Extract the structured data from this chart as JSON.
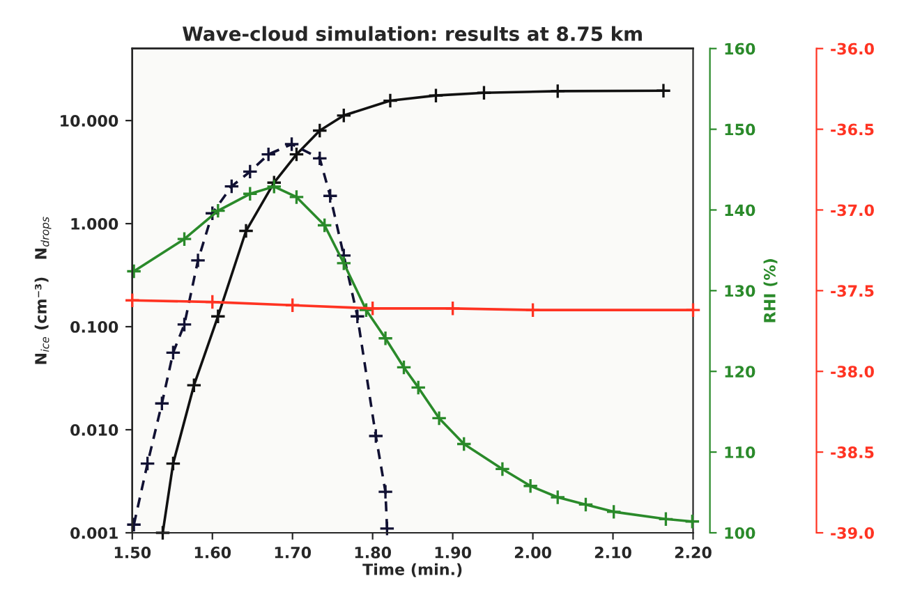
{
  "chart_data": {
    "type": "line",
    "title": "Wave-cloud simulation: results at 8.75 km",
    "xlabel": "Time (min.)",
    "ylabel": "N$_{ice}$ (cm⁻³)   N$_{drops}$",
    "y2label": "RHI (%)",
    "log": "y",
    "marker": "cross",
    "grid": false,
    "legend": false,
    "xlim": [
      1.5,
      2.2
    ],
    "xticks": [
      {
        "value": 1.5,
        "label": "1.50"
      },
      {
        "value": 1.6,
        "label": "1.60"
      },
      {
        "value": 1.7,
        "label": "1.70"
      },
      {
        "value": 1.8,
        "label": "1.80"
      },
      {
        "value": 1.9,
        "label": "1.90"
      },
      {
        "value": 2.0,
        "label": "2.00"
      },
      {
        "value": 2.1,
        "label": "2.10"
      },
      {
        "value": 2.2,
        "label": "2.20"
      }
    ],
    "ylim": [
      0.001,
      50
    ],
    "yticks": [
      {
        "value": 0.001,
        "label": "0.001"
      },
      {
        "value": 0.01,
        "label": "0.010"
      },
      {
        "value": 0.1,
        "label": "0.100"
      },
      {
        "value": 1,
        "label": "1.000"
      },
      {
        "value": 10,
        "label": "10.000"
      }
    ],
    "y2lim": [
      100,
      160
    ],
    "y2ticks": [
      100,
      110,
      120,
      130,
      140,
      150,
      160
    ],
    "y3lim": [
      -39.0,
      -36.0
    ],
    "y3ticks": [
      {
        "value": -39.0,
        "label": "-39.0"
      },
      {
        "value": -38.5,
        "label": "-38.5"
      },
      {
        "value": -38.0,
        "label": "-38.0"
      },
      {
        "value": -37.5,
        "label": "-37.5"
      },
      {
        "value": -37.0,
        "label": "-37.0"
      },
      {
        "value": -36.5,
        "label": "-36.5"
      },
      {
        "value": -36.0,
        "label": "-36.0"
      }
    ],
    "series": [
      {
        "color": "#111111",
        "line_style": "solid",
        "x": [
          1.538,
          1.551,
          1.577,
          1.607,
          1.642,
          1.677,
          1.705,
          1.734,
          1.764,
          1.822,
          1.879,
          1.939,
          2.031,
          2.163
        ],
        "values": [
          0.001,
          0.0047,
          0.027,
          0.126,
          0.85,
          2.5,
          4.7,
          8.0,
          11.2,
          15.6,
          17.5,
          18.6,
          19.3,
          19.5
        ]
      },
      {
        "color": "#111133",
        "line_style": "dashed",
        "x": [
          1.502,
          1.519,
          1.537,
          1.551,
          1.565,
          1.582,
          1.6,
          1.624,
          1.647,
          1.67,
          1.699,
          1.734,
          1.747,
          1.764,
          1.781,
          1.804,
          1.816,
          1.818
        ],
        "values": [
          0.0012,
          0.0047,
          0.018,
          0.056,
          0.105,
          0.44,
          1.26,
          2.3,
          3.2,
          4.7,
          5.9,
          4.3,
          1.86,
          0.49,
          0.126,
          0.0087,
          0.0025,
          0.0011
        ]
      },
      {
        "color": "#2a8a2a",
        "line_style": "solid",
        "axis": "y2",
        "x": [
          1.502,
          1.565,
          1.607,
          1.647,
          1.677,
          1.705,
          1.74,
          1.764,
          1.792,
          1.816,
          1.839,
          1.857,
          1.883,
          1.914,
          1.962,
          1.997,
          2.031,
          2.066,
          2.101,
          2.166,
          2.199
        ],
        "values": [
          132.4,
          136.4,
          139.9,
          142.0,
          142.9,
          141.6,
          138.1,
          133.4,
          127.6,
          124.1,
          120.5,
          118.0,
          114.2,
          111.0,
          107.9,
          105.8,
          104.4,
          103.5,
          102.6,
          101.7,
          101.4
        ]
      },
      {
        "color": "#ff3322",
        "line_style": "solid",
        "axis": "y3",
        "x": [
          1.5,
          1.6,
          1.7,
          1.8,
          1.9,
          2.0,
          2.2
        ],
        "values": [
          -37.56,
          -37.57,
          -37.59,
          -37.61,
          -37.61,
          -37.62,
          -37.62
        ]
      }
    ]
  }
}
